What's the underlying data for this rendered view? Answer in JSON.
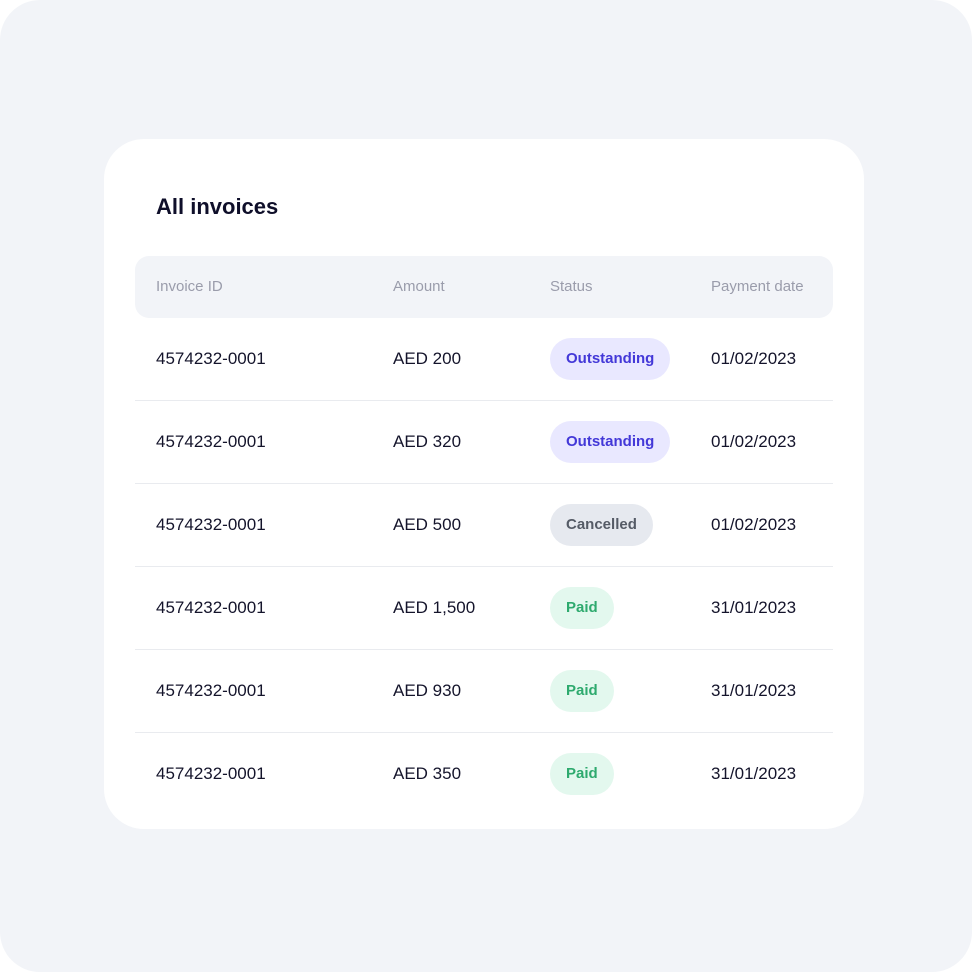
{
  "title": "All invoices",
  "columns": [
    "Invoice ID",
    "Amount",
    "Status",
    "Payment date"
  ],
  "rows": [
    {
      "id": "4574232-0001",
      "amount": "AED 200",
      "status": "Outstanding",
      "date": "01/02/2023"
    },
    {
      "id": "4574232-0001",
      "amount": "AED 320",
      "status": "Outstanding",
      "date": "01/02/2023"
    },
    {
      "id": "4574232-0001",
      "amount": "AED 500",
      "status": "Cancelled",
      "date": "01/02/2023"
    },
    {
      "id": "4574232-0001",
      "amount": "AED 1,500",
      "status": "Paid",
      "date": "31/01/2023"
    },
    {
      "id": "4574232-0001",
      "amount": "AED 930",
      "status": "Paid",
      "date": "31/01/2023"
    },
    {
      "id": "4574232-0001",
      "amount": "AED 350",
      "status": "Paid",
      "date": "31/01/2023"
    }
  ],
  "status_colors": {
    "Outstanding": "#4338d8",
    "Cancelled": "#555b66",
    "Paid": "#2eaa6e"
  }
}
